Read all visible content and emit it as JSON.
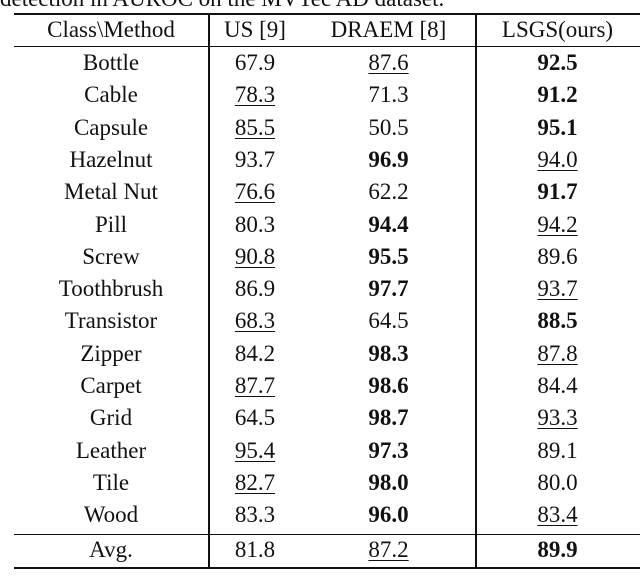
{
  "caption": "detection in AUROC on the MVTec AD dataset.",
  "headers": [
    "Class\\Method",
    "US [9]",
    "DRAEM [8]",
    "LSGS(ours)"
  ],
  "rows": [
    {
      "cls": "Bottle",
      "v": [
        "67.9",
        "87.6",
        "92.5"
      ],
      "s": [
        "",
        "u",
        "b"
      ]
    },
    {
      "cls": "Cable",
      "v": [
        "78.3",
        "71.3",
        "91.2"
      ],
      "s": [
        "u",
        "",
        "b"
      ]
    },
    {
      "cls": "Capsule",
      "v": [
        "85.5",
        "50.5",
        "95.1"
      ],
      "s": [
        "u",
        "",
        "b"
      ]
    },
    {
      "cls": "Hazelnut",
      "v": [
        "93.7",
        "96.9",
        "94.0"
      ],
      "s": [
        "",
        "b",
        "u"
      ]
    },
    {
      "cls": "Metal Nut",
      "v": [
        "76.6",
        "62.2",
        "91.7"
      ],
      "s": [
        "u",
        "",
        "b"
      ]
    },
    {
      "cls": "Pill",
      "v": [
        "80.3",
        "94.4",
        "94.2"
      ],
      "s": [
        "",
        "b",
        "u"
      ]
    },
    {
      "cls": "Screw",
      "v": [
        "90.8",
        "95.5",
        "89.6"
      ],
      "s": [
        "u",
        "b",
        ""
      ]
    },
    {
      "cls": "Toothbrush",
      "v": [
        "86.9",
        "97.7",
        "93.7"
      ],
      "s": [
        "",
        "b",
        "u"
      ]
    },
    {
      "cls": "Transistor",
      "v": [
        "68.3",
        "64.5",
        "88.5"
      ],
      "s": [
        "u",
        "",
        "b"
      ]
    },
    {
      "cls": "Zipper",
      "v": [
        "84.2",
        "98.3",
        "87.8"
      ],
      "s": [
        "",
        "b",
        "u"
      ]
    },
    {
      "cls": "Carpet",
      "v": [
        "87.7",
        "98.6",
        "84.4"
      ],
      "s": [
        "u",
        "b",
        ""
      ]
    },
    {
      "cls": "Grid",
      "v": [
        "64.5",
        "98.7",
        "93.3"
      ],
      "s": [
        "",
        "b",
        "u"
      ]
    },
    {
      "cls": "Leather",
      "v": [
        "95.4",
        "97.3",
        "89.1"
      ],
      "s": [
        "u",
        "b",
        ""
      ]
    },
    {
      "cls": "Tile",
      "v": [
        "82.7",
        "98.0",
        "80.0"
      ],
      "s": [
        "u",
        "b",
        ""
      ]
    },
    {
      "cls": "Wood",
      "v": [
        "83.3",
        "96.0",
        "83.4"
      ],
      "s": [
        "",
        "b",
        "u"
      ]
    }
  ],
  "average": {
    "cls": "Avg.",
    "v": [
      "81.8",
      "87.2",
      "89.9"
    ],
    "s": [
      "",
      "u",
      "b"
    ]
  }
}
